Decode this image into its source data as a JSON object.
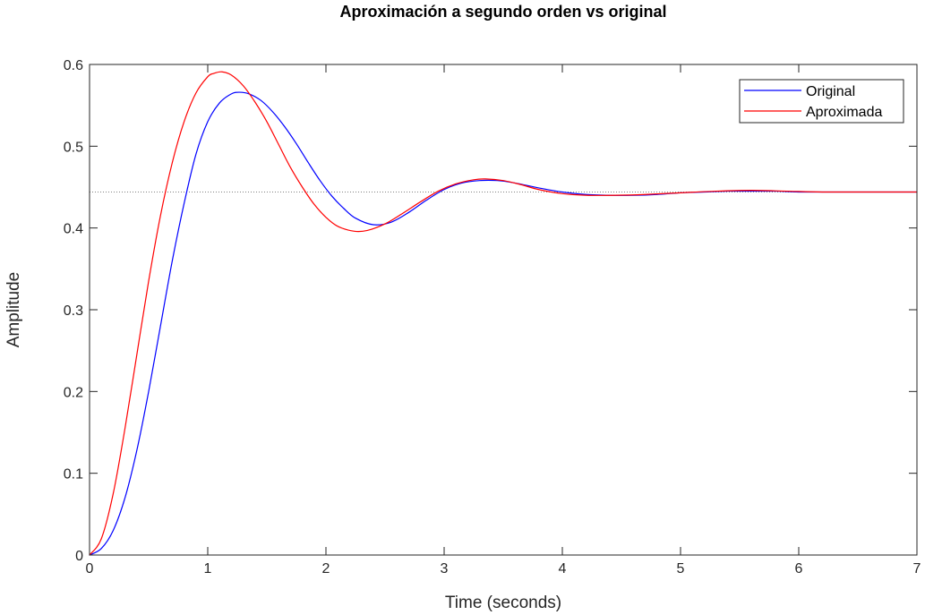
{
  "chart_data": {
    "type": "line",
    "title": "Aproximación a segundo orden vs original",
    "xlabel": "Time (seconds)",
    "ylabel": "Amplitude",
    "xlim": [
      0,
      7
    ],
    "ylim": [
      0,
      0.6
    ],
    "xticks": [
      "0",
      "1",
      "2",
      "3",
      "4",
      "5",
      "6",
      "7"
    ],
    "yticks": [
      "0",
      "0.1",
      "0.2",
      "0.3",
      "0.4",
      "0.5",
      "0.6"
    ],
    "grid": false,
    "legend": "top-right",
    "reference_line": {
      "y": 0.444,
      "style": "dotted",
      "color": "#808080"
    },
    "series": [
      {
        "name": "Original",
        "color": "#0000ff",
        "x": [
          0,
          0.1,
          0.2,
          0.3,
          0.4,
          0.5,
          0.6,
          0.7,
          0.8,
          0.9,
          1.0,
          1.1,
          1.2,
          1.27,
          1.35,
          1.45,
          1.55,
          1.65,
          1.75,
          1.85,
          1.95,
          2.05,
          2.15,
          2.25,
          2.4,
          2.55,
          2.7,
          2.85,
          3.0,
          3.15,
          3.3,
          3.45,
          3.6,
          3.8,
          4.0,
          4.2,
          4.4,
          4.6,
          4.8,
          5.0,
          5.2,
          5.4,
          5.6,
          5.8,
          6.0,
          6.2,
          6.5,
          7.0
        ],
        "y": [
          0,
          0.008,
          0.03,
          0.07,
          0.128,
          0.2,
          0.28,
          0.36,
          0.43,
          0.49,
          0.53,
          0.553,
          0.564,
          0.566,
          0.564,
          0.556,
          0.542,
          0.524,
          0.503,
          0.48,
          0.458,
          0.439,
          0.424,
          0.412,
          0.404,
          0.407,
          0.419,
          0.434,
          0.447,
          0.455,
          0.458,
          0.458,
          0.455,
          0.449,
          0.444,
          0.441,
          0.44,
          0.44,
          0.441,
          0.443,
          0.444,
          0.445,
          0.445,
          0.445,
          0.444,
          0.444,
          0.444,
          0.444
        ]
      },
      {
        "name": "Aproximada",
        "color": "#ff0000",
        "x": [
          0,
          0.1,
          0.2,
          0.3,
          0.4,
          0.5,
          0.6,
          0.7,
          0.8,
          0.9,
          1.0,
          1.05,
          1.12,
          1.2,
          1.3,
          1.4,
          1.5,
          1.6,
          1.7,
          1.8,
          1.9,
          2.0,
          2.1,
          2.24,
          2.35,
          2.5,
          2.65,
          2.8,
          2.95,
          3.1,
          3.25,
          3.35,
          3.5,
          3.65,
          3.8,
          4.0,
          4.2,
          4.45,
          4.7,
          5.0,
          5.3,
          5.6,
          5.9,
          6.2,
          6.6,
          7.0
        ],
        "y": [
          0,
          0.02,
          0.075,
          0.155,
          0.245,
          0.335,
          0.415,
          0.48,
          0.53,
          0.565,
          0.585,
          0.589,
          0.591,
          0.587,
          0.574,
          0.554,
          0.53,
          0.502,
          0.474,
          0.45,
          0.429,
          0.413,
          0.402,
          0.396,
          0.397,
          0.405,
          0.418,
          0.432,
          0.445,
          0.454,
          0.459,
          0.46,
          0.458,
          0.453,
          0.447,
          0.442,
          0.44,
          0.44,
          0.441,
          0.443,
          0.445,
          0.446,
          0.445,
          0.444,
          0.444,
          0.444
        ]
      }
    ]
  }
}
